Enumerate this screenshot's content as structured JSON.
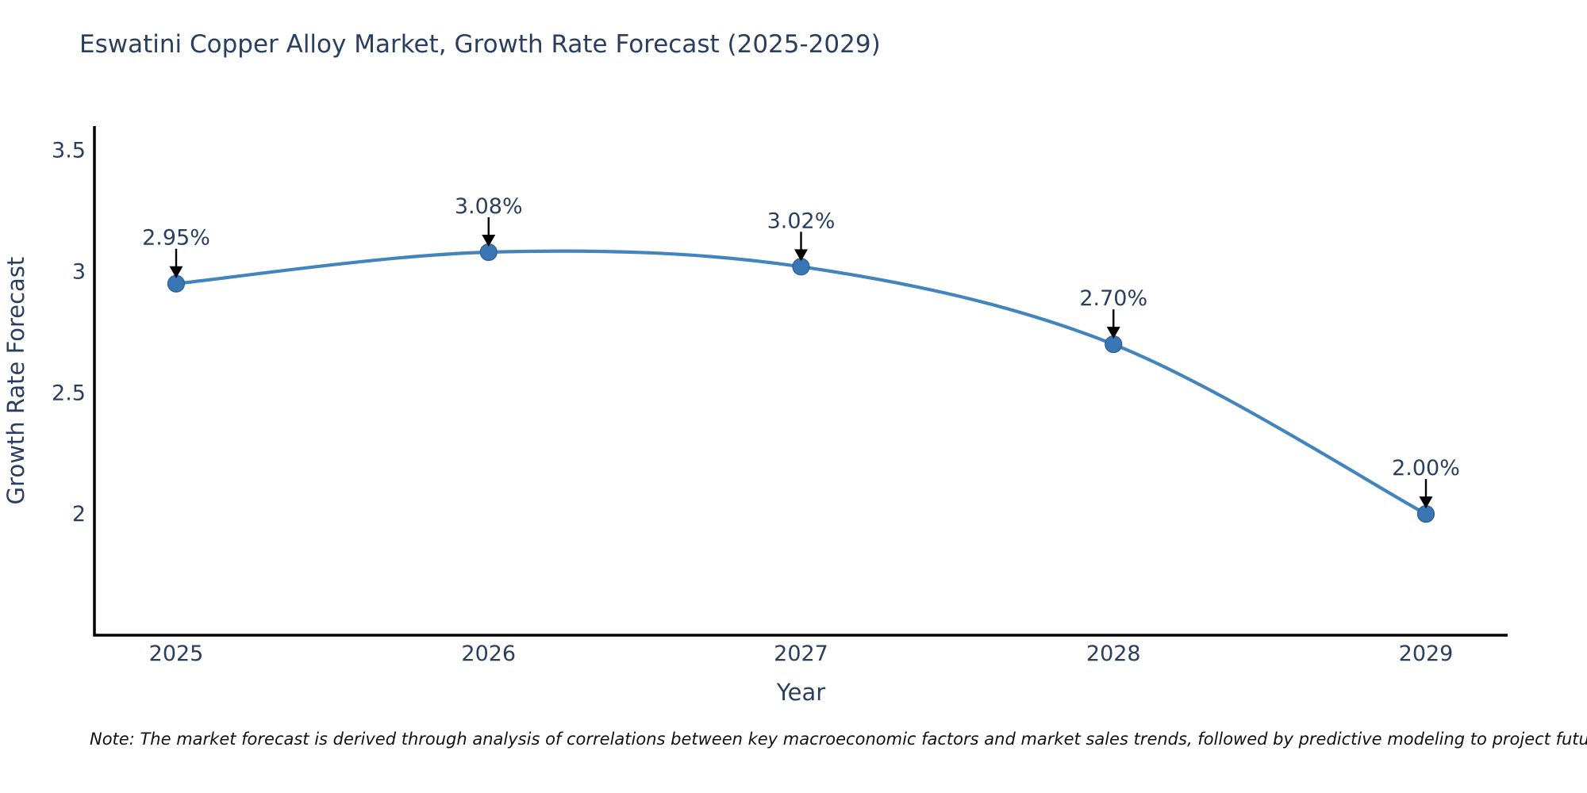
{
  "title": "Eswatini Copper Alloy Market, Growth Rate Forecast (2025-2029)",
  "note": "Note: The market forecast is derived through analysis of correlations between key macroeconomic factors and market sales trends, followed by predictive modeling to project future sales",
  "chart_data": {
    "type": "line",
    "title": "Eswatini Copper Alloy Market, Growth Rate Forecast (2025-2029)",
    "categories": [
      "2025",
      "2026",
      "2027",
      "2028",
      "2029"
    ],
    "values": [
      2.95,
      3.08,
      3.02,
      2.7,
      2.0
    ],
    "point_labels": [
      "2.95%",
      "3.08%",
      "3.02%",
      "2.70%",
      "2.00%"
    ],
    "series_name": "Growth Rate Forecast",
    "xlabel": "Year",
    "ylabel": "Growth Rate Forecast",
    "ylim": [
      1.5,
      3.6
    ],
    "yticks": [
      2,
      2.5,
      3,
      3.5
    ],
    "ytick_labels": [
      "2",
      "2.5",
      "3",
      "3.5"
    ],
    "grid": false,
    "legend": "none",
    "line_style": "spline",
    "annotations": "value labels with downward arrows above each point",
    "colors": {
      "line": "#4285bd",
      "marker": "#3876b4",
      "marker_edge": "#2a6194",
      "arrow": "#000000",
      "text": "#2a3f5f",
      "axis": "#000000"
    }
  }
}
